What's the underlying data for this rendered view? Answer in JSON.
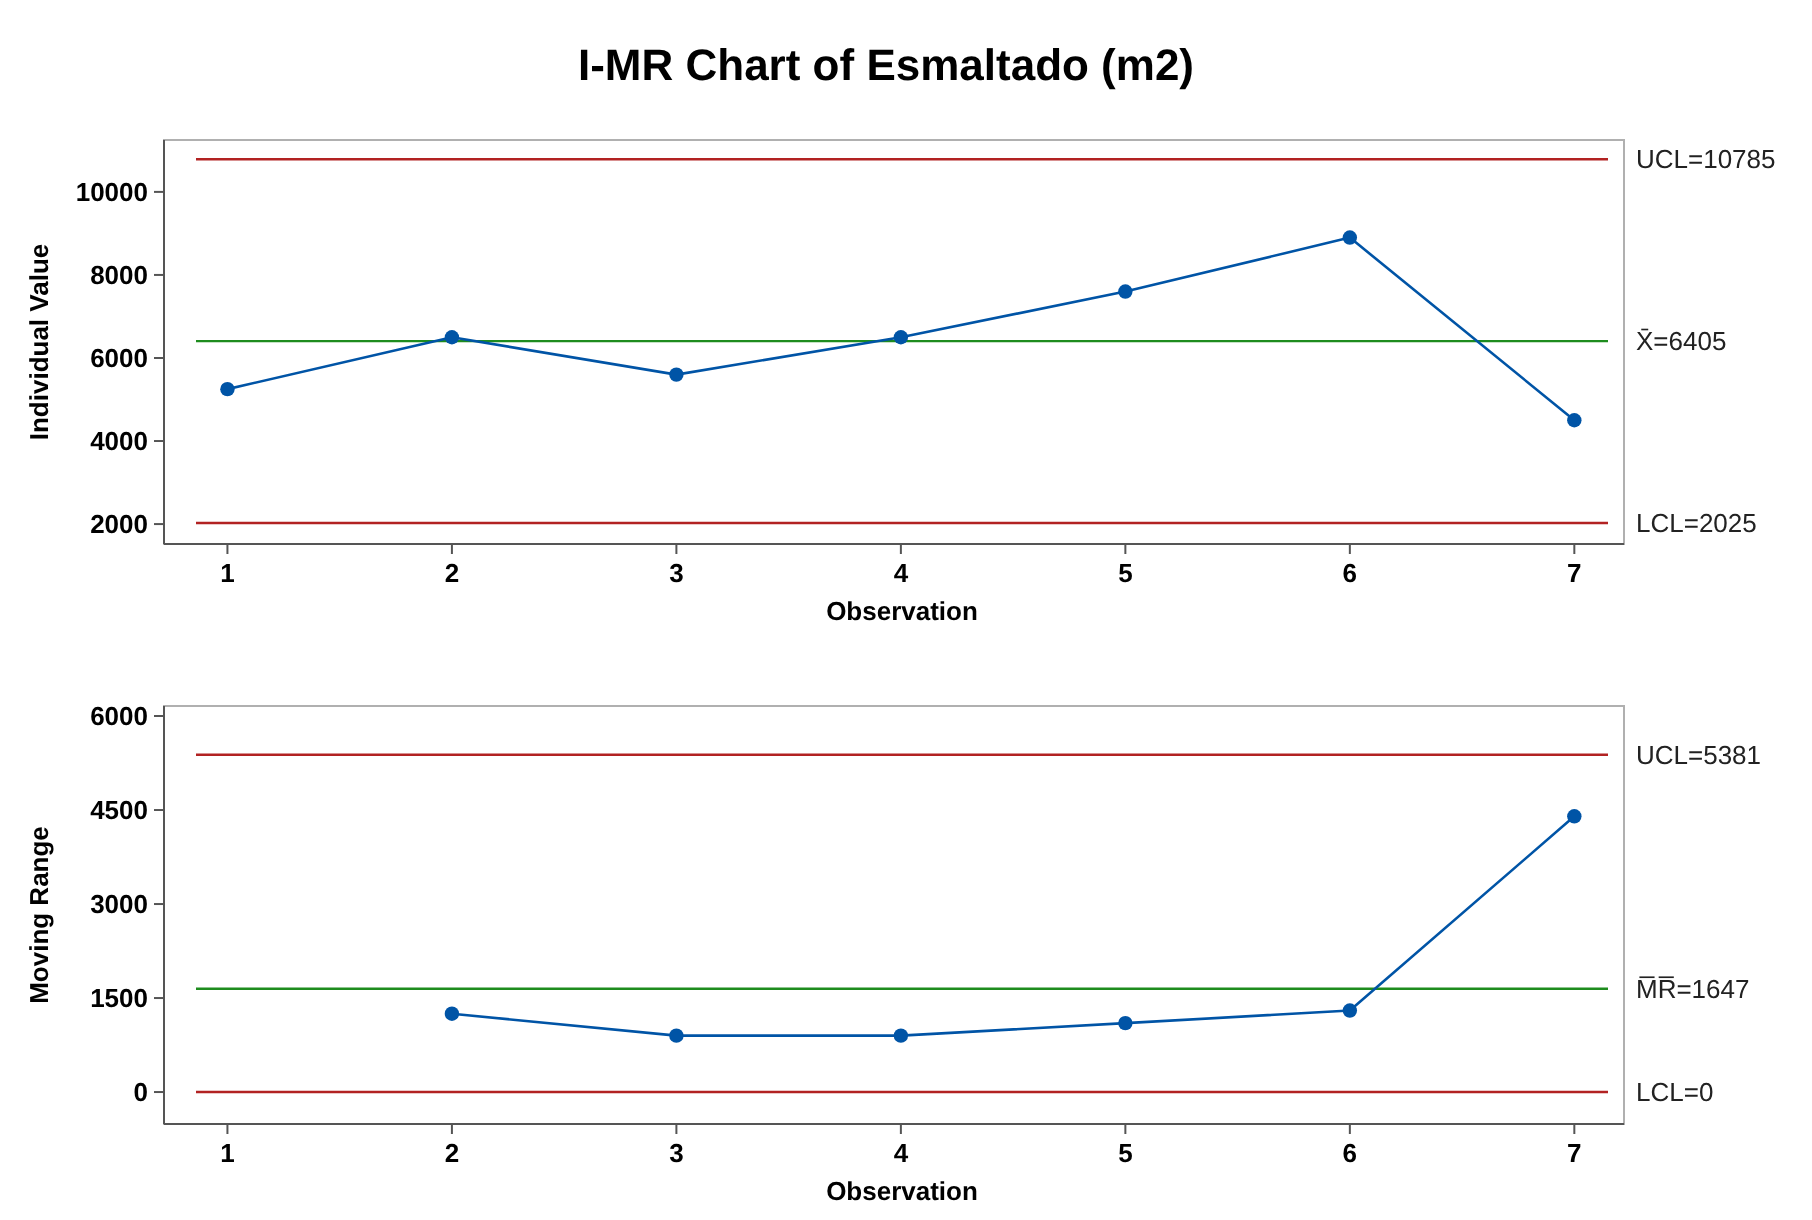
{
  "chart_data": [
    {
      "type": "line",
      "title": "I-MR Chart of Esmaltado (m2)",
      "xlabel": "Observation",
      "ylabel": "Individual Value",
      "x": [
        1,
        2,
        3,
        4,
        5,
        6,
        7
      ],
      "xlim": [
        0.86,
        7.15
      ],
      "xticks": [
        1,
        2,
        3,
        4,
        5,
        6,
        7
      ],
      "ylim": [
        1520,
        11250
      ],
      "yticks": [
        2000,
        4000,
        6000,
        8000,
        10000
      ],
      "grid": false,
      "marker": "circle",
      "line_style": "solid",
      "series": [
        {
          "color": "#0054a6",
          "values": [
            5250,
            6500,
            5600,
            6500,
            7600,
            8900,
            4500
          ]
        }
      ],
      "ref_lines": [
        {
          "axis": "y",
          "value": 10785,
          "label": "UCL=10785",
          "color": "#b22222"
        },
        {
          "axis": "y",
          "value": 6405,
          "label": "X̄=6405",
          "color": "#1e8c1e"
        },
        {
          "axis": "y",
          "value": 2025,
          "label": "LCL=2025",
          "color": "#b22222"
        }
      ]
    },
    {
      "type": "line",
      "xlabel": "Observation",
      "ylabel": "Moving Range",
      "xlim": [
        0.86,
        7.15
      ],
      "xticks": [
        1,
        2,
        3,
        4,
        5,
        6,
        7
      ],
      "ylim": [
        -510,
        6160
      ],
      "yticks": [
        0,
        1500,
        3000,
        4500,
        6000
      ],
      "grid": false,
      "marker": "circle",
      "line_style": "solid",
      "series": [
        {
          "color": "#0054a6",
          "x": [
            2,
            3,
            4,
            5,
            6,
            7
          ],
          "values": [
            1250,
            900,
            900,
            1100,
            1300,
            4400
          ]
        }
      ],
      "ref_lines": [
        {
          "axis": "y",
          "value": 5381,
          "label": "UCL=5381",
          "color": "#b22222"
        },
        {
          "axis": "y",
          "value": 1647,
          "label": "M̅R̅=1647",
          "color": "#1e8c1e"
        },
        {
          "axis": "y",
          "value": 0,
          "label": "LCL=0",
          "color": "#b22222"
        }
      ]
    }
  ]
}
